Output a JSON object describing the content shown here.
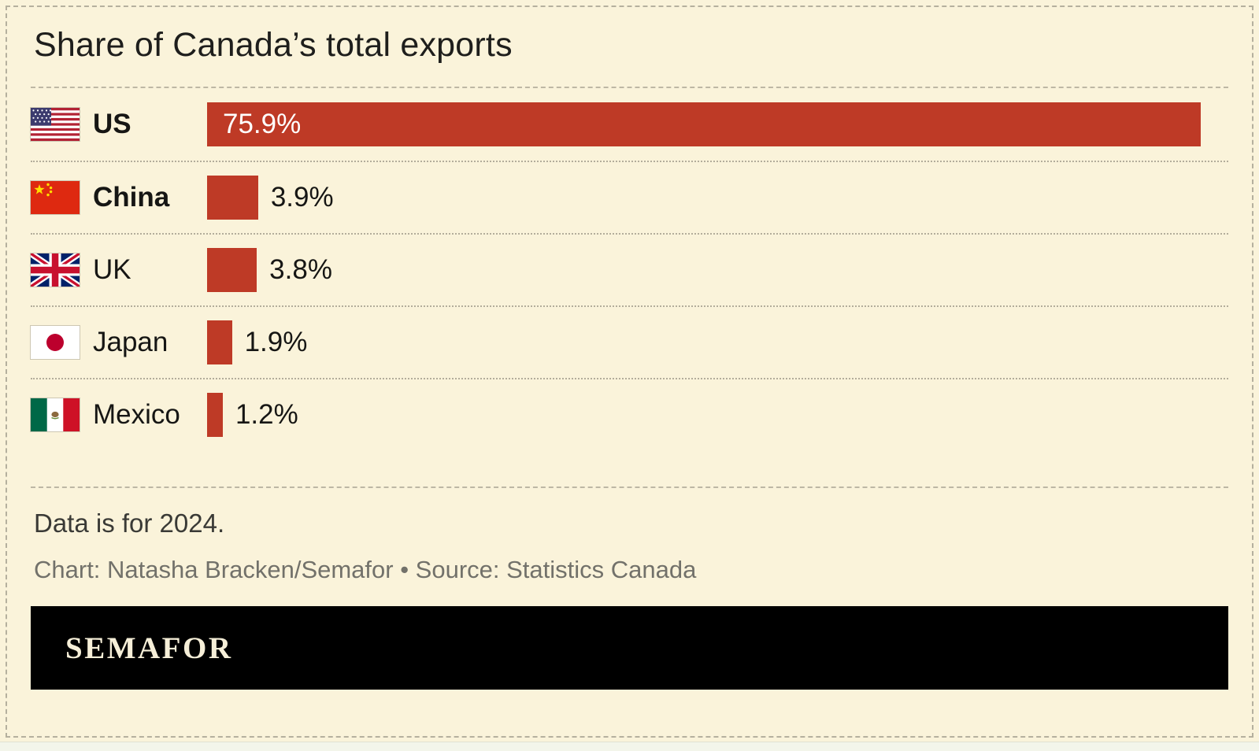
{
  "page": {
    "background": "#faf3da",
    "border_color": "#b5b09e"
  },
  "header": {
    "title": "Share of Canada’s total exports"
  },
  "chart_data": {
    "type": "bar",
    "orientation": "horizontal",
    "title": "Share of Canada’s total exports",
    "unit": "%",
    "x_max": 78,
    "xlim": [
      0,
      78
    ],
    "grid": false,
    "bar_color": "#be3a26",
    "inside_label_min": 20,
    "categories": [
      "US",
      "China",
      "UK",
      "Japan",
      "Mexico"
    ],
    "values": [
      75.9,
      3.9,
      3.8,
      1.9,
      1.2
    ],
    "rows": [
      {
        "label": "US",
        "value": 75.9,
        "display": "75.9%",
        "flag": "us-flag-icon",
        "bold": true
      },
      {
        "label": "China",
        "value": 3.9,
        "display": "3.9%",
        "flag": "china-flag-icon",
        "bold": true
      },
      {
        "label": "UK",
        "value": 3.8,
        "display": "3.8%",
        "flag": "uk-flag-icon",
        "bold": false
      },
      {
        "label": "Japan",
        "value": 1.9,
        "display": "1.9%",
        "flag": "japan-flag-icon",
        "bold": false
      },
      {
        "label": "Mexico",
        "value": 1.2,
        "display": "1.2%",
        "flag": "mexico-flag-icon",
        "bold": false
      }
    ]
  },
  "notes": {
    "footnote": "Data is for 2024.",
    "credit": "Chart: Natasha Bracken/Semafor • Source: Statistics Canada"
  },
  "footer": {
    "brand": "SEMAFOR",
    "background": "#000000",
    "text_color": "#f6efd8"
  }
}
